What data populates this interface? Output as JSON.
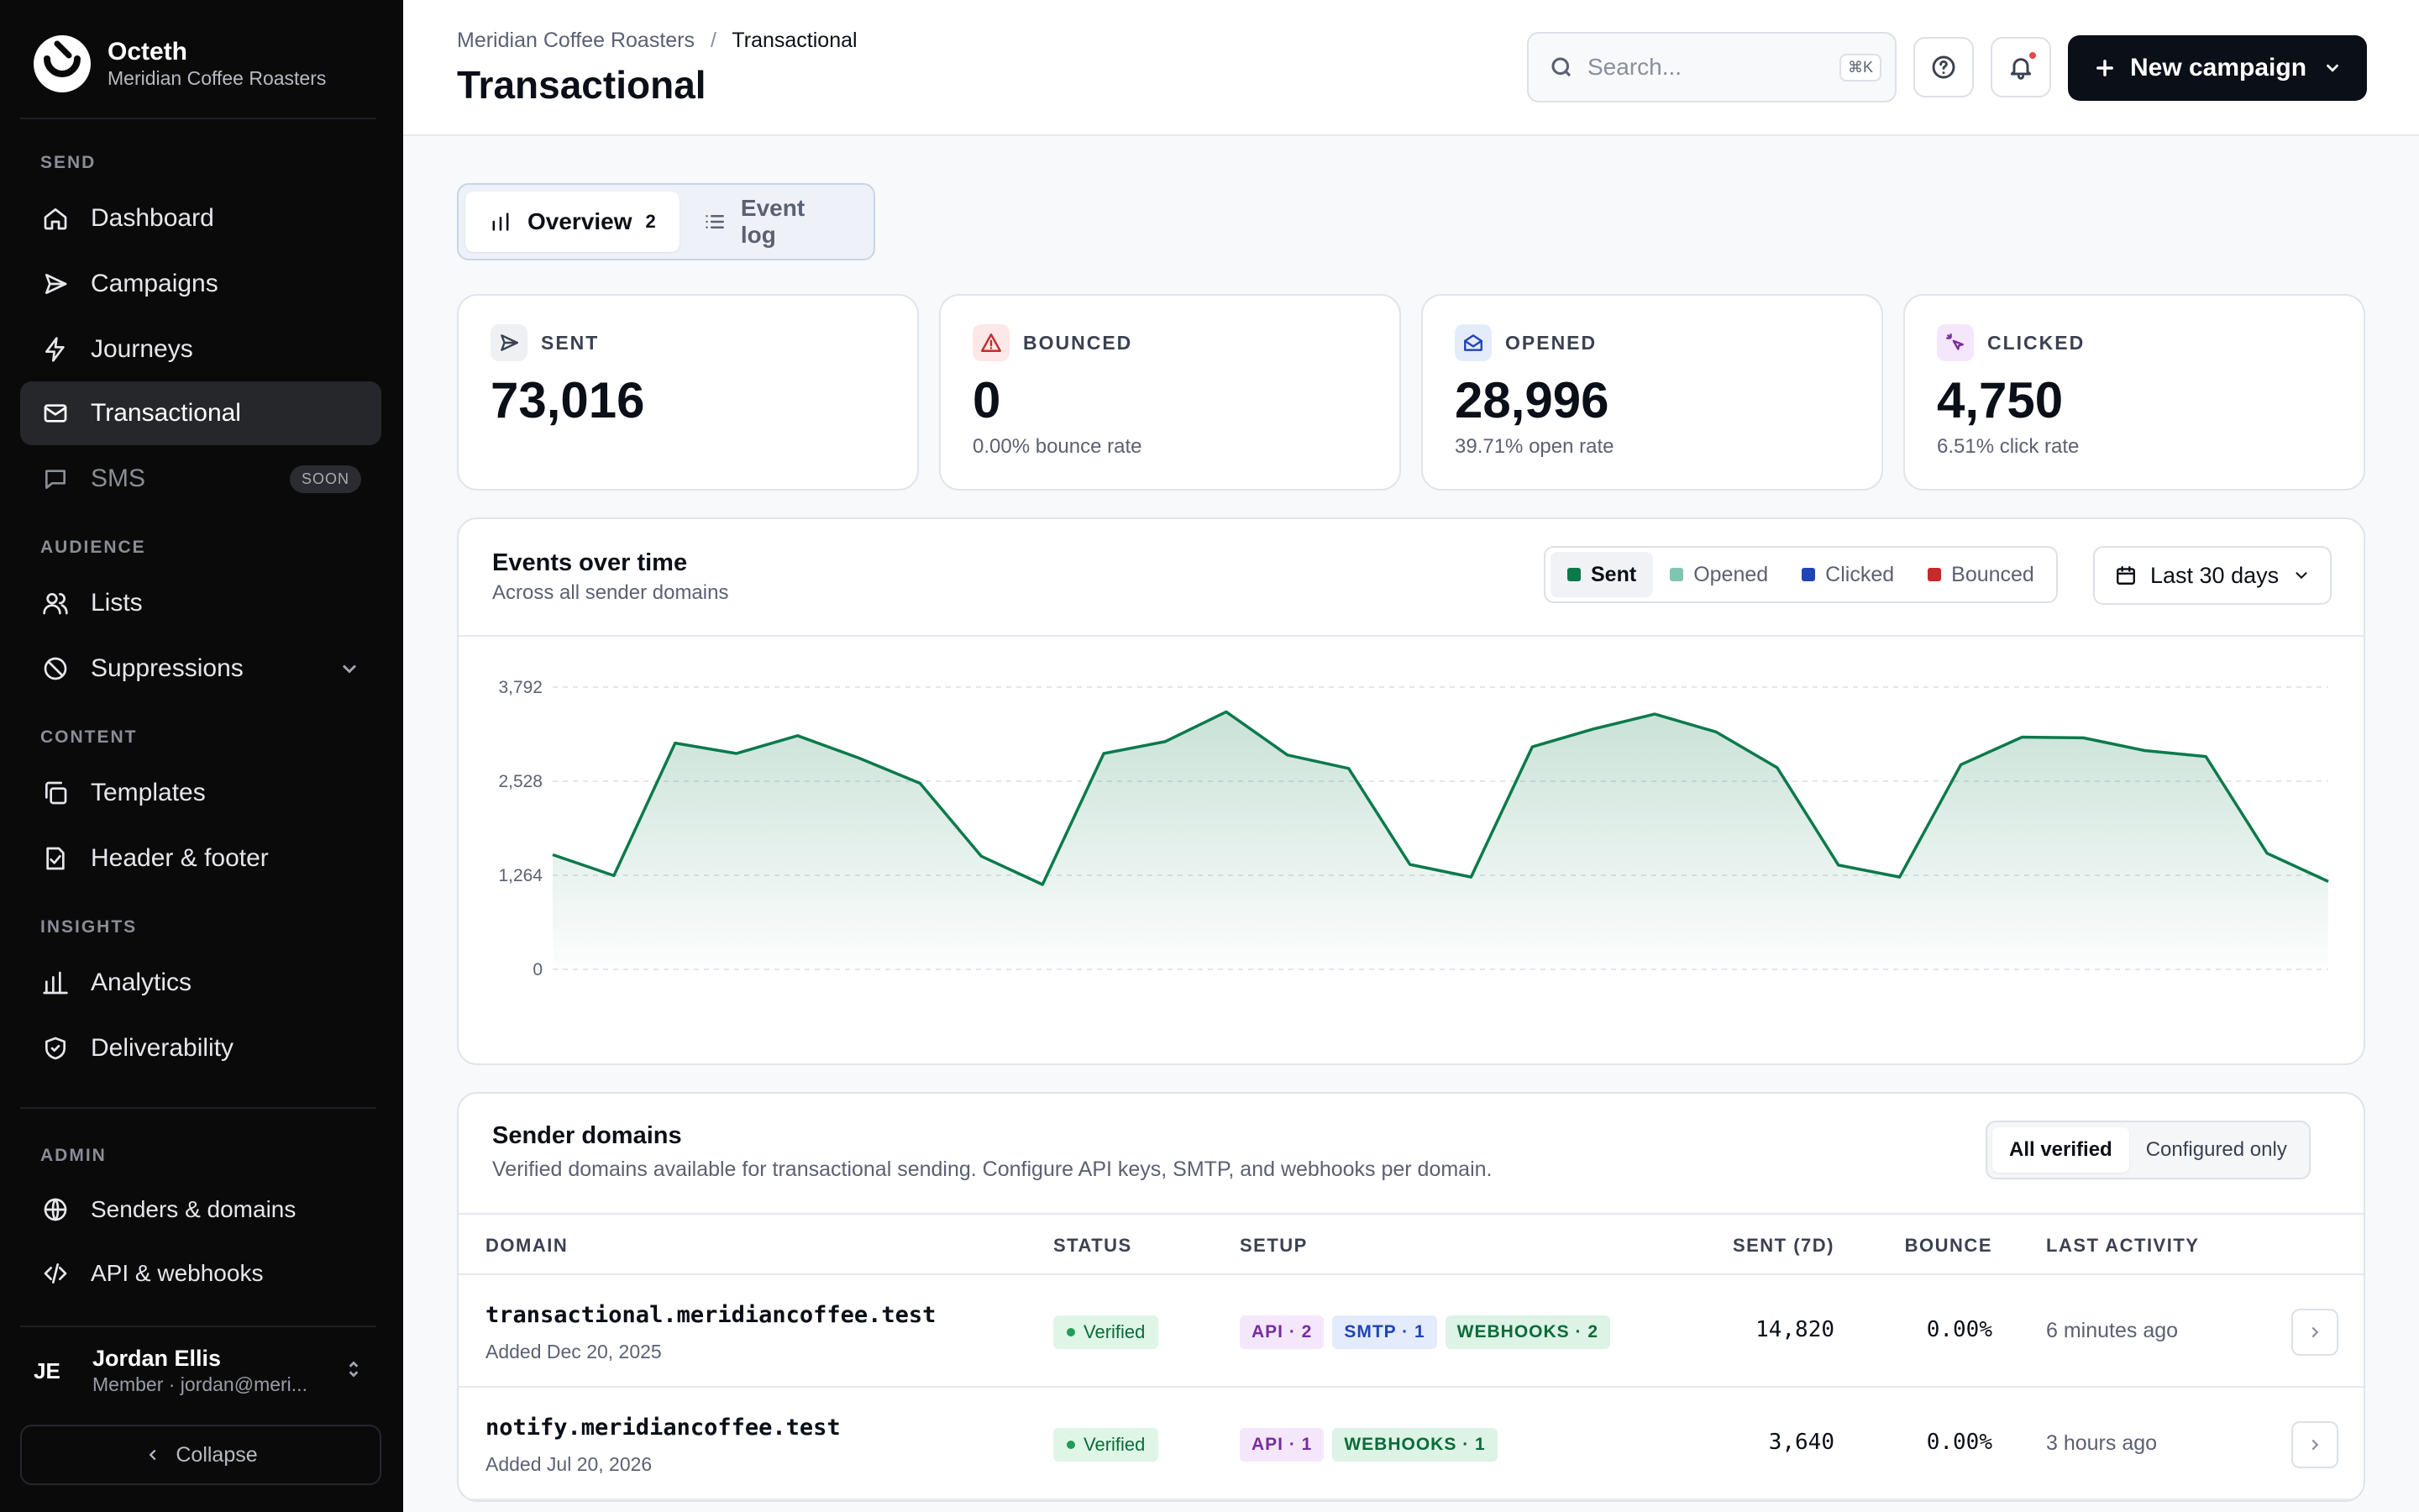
{
  "brand": {
    "name": "Octeth",
    "subtitle": "Meridian Coffee Roasters"
  },
  "sidebar": {
    "sections": {
      "send": "SEND",
      "audience": "AUDIENCE",
      "content": "CONTENT",
      "insights": "INSIGHTS",
      "admin": "ADMIN"
    },
    "items": {
      "dashboard": "Dashboard",
      "campaigns": "Campaigns",
      "journeys": "Journeys",
      "transactional": "Transactional",
      "sms": "SMS",
      "sms_badge": "SOON",
      "lists": "Lists",
      "suppressions": "Suppressions",
      "templates": "Templates",
      "header_footer": "Header & footer",
      "analytics": "Analytics",
      "deliverability": "Deliverability",
      "senders_domains": "Senders & domains",
      "api_webhooks": "API & webhooks"
    },
    "user": {
      "initials": "JE",
      "name": "Jordan Ellis",
      "subtitle": "Member · jordan@meri..."
    },
    "collapse_label": "Collapse"
  },
  "header": {
    "breadcrumb": {
      "parent": "Meridian Coffee Roasters",
      "separator": "/",
      "current": "Transactional"
    },
    "title": "Transactional",
    "search": {
      "placeholder": "Search...",
      "shortcut": "⌘K"
    },
    "new_campaign_label": "New campaign"
  },
  "tabs": {
    "overview": {
      "label": "Overview",
      "count": "2"
    },
    "event_log": {
      "label": "Event log"
    }
  },
  "stats": {
    "sent": {
      "label": "SENT",
      "value": "73,016",
      "sub": ""
    },
    "bounced": {
      "label": "BOUNCED",
      "value": "0",
      "sub": "0.00% bounce rate"
    },
    "opened": {
      "label": "OPENED",
      "value": "28,996",
      "sub": "39.71% open rate"
    },
    "clicked": {
      "label": "CLICKED",
      "value": "4,750",
      "sub": "6.51% click rate"
    }
  },
  "events_chart": {
    "title": "Events over time",
    "subtitle": "Across all sender domains",
    "legend": [
      {
        "label": "Sent",
        "color": "#0b7a4b",
        "active": true
      },
      {
        "label": "Opened",
        "color": "#7fc6b2",
        "active": false
      },
      {
        "label": "Clicked",
        "color": "#1f45b5",
        "active": false
      },
      {
        "label": "Bounced",
        "color": "#c42b2b",
        "active": false
      }
    ],
    "range_label": "Last 30 days"
  },
  "chart_data": {
    "type": "area",
    "x": [
      1,
      2,
      3,
      4,
      5,
      6,
      7,
      8,
      9,
      10,
      11,
      12,
      13,
      14,
      15,
      16,
      17,
      18,
      19,
      20,
      21,
      22,
      23,
      24,
      25,
      26,
      27,
      28,
      29,
      30
    ],
    "series": [
      {
        "name": "Sent",
        "color": "#0b7a4b",
        "values": [
          1540,
          1260,
          3040,
          2900,
          3140,
          2840,
          2500,
          1520,
          1140,
          2900,
          3060,
          3460,
          2880,
          2700,
          1410,
          1240,
          2990,
          3230,
          3430,
          3190,
          2710,
          1400,
          1240,
          2750,
          3120,
          3110,
          2940,
          2860,
          1560,
          1180
        ]
      }
    ],
    "yticks": [
      0,
      1264,
      2528,
      3792
    ],
    "ylim": [
      0,
      3792
    ],
    "grid": true
  },
  "domains": {
    "title": "Sender domains",
    "subtitle": "Verified domains available for transactional sending. Configure API keys, SMTP, and webhooks per domain.",
    "filter": {
      "all": "All verified",
      "configured": "Configured only"
    },
    "columns": {
      "domain": "DOMAIN",
      "status": "STATUS",
      "setup": "SETUP",
      "sent": "SENT (7D)",
      "bounce": "BOUNCE",
      "last": "LAST ACTIVITY"
    },
    "rows": [
      {
        "domain": "transactional.meridiancoffee.test",
        "added": "Added Dec 20, 2025",
        "status": "Verified",
        "tags": {
          "api": "API · 2",
          "smtp": "SMTP · 1",
          "webhooks": "WEBHOOKS · 2"
        },
        "sent": "14,820",
        "bounce": "0.00%",
        "last": "6 minutes ago"
      },
      {
        "domain": "notify.meridiancoffee.test",
        "added": "Added Jul 20, 2026",
        "status": "Verified",
        "tags": {
          "api": "API · 1",
          "webhooks": "WEBHOOKS · 1"
        },
        "sent": "3,640",
        "bounce": "0.00%",
        "last": "3 hours ago"
      }
    ]
  }
}
